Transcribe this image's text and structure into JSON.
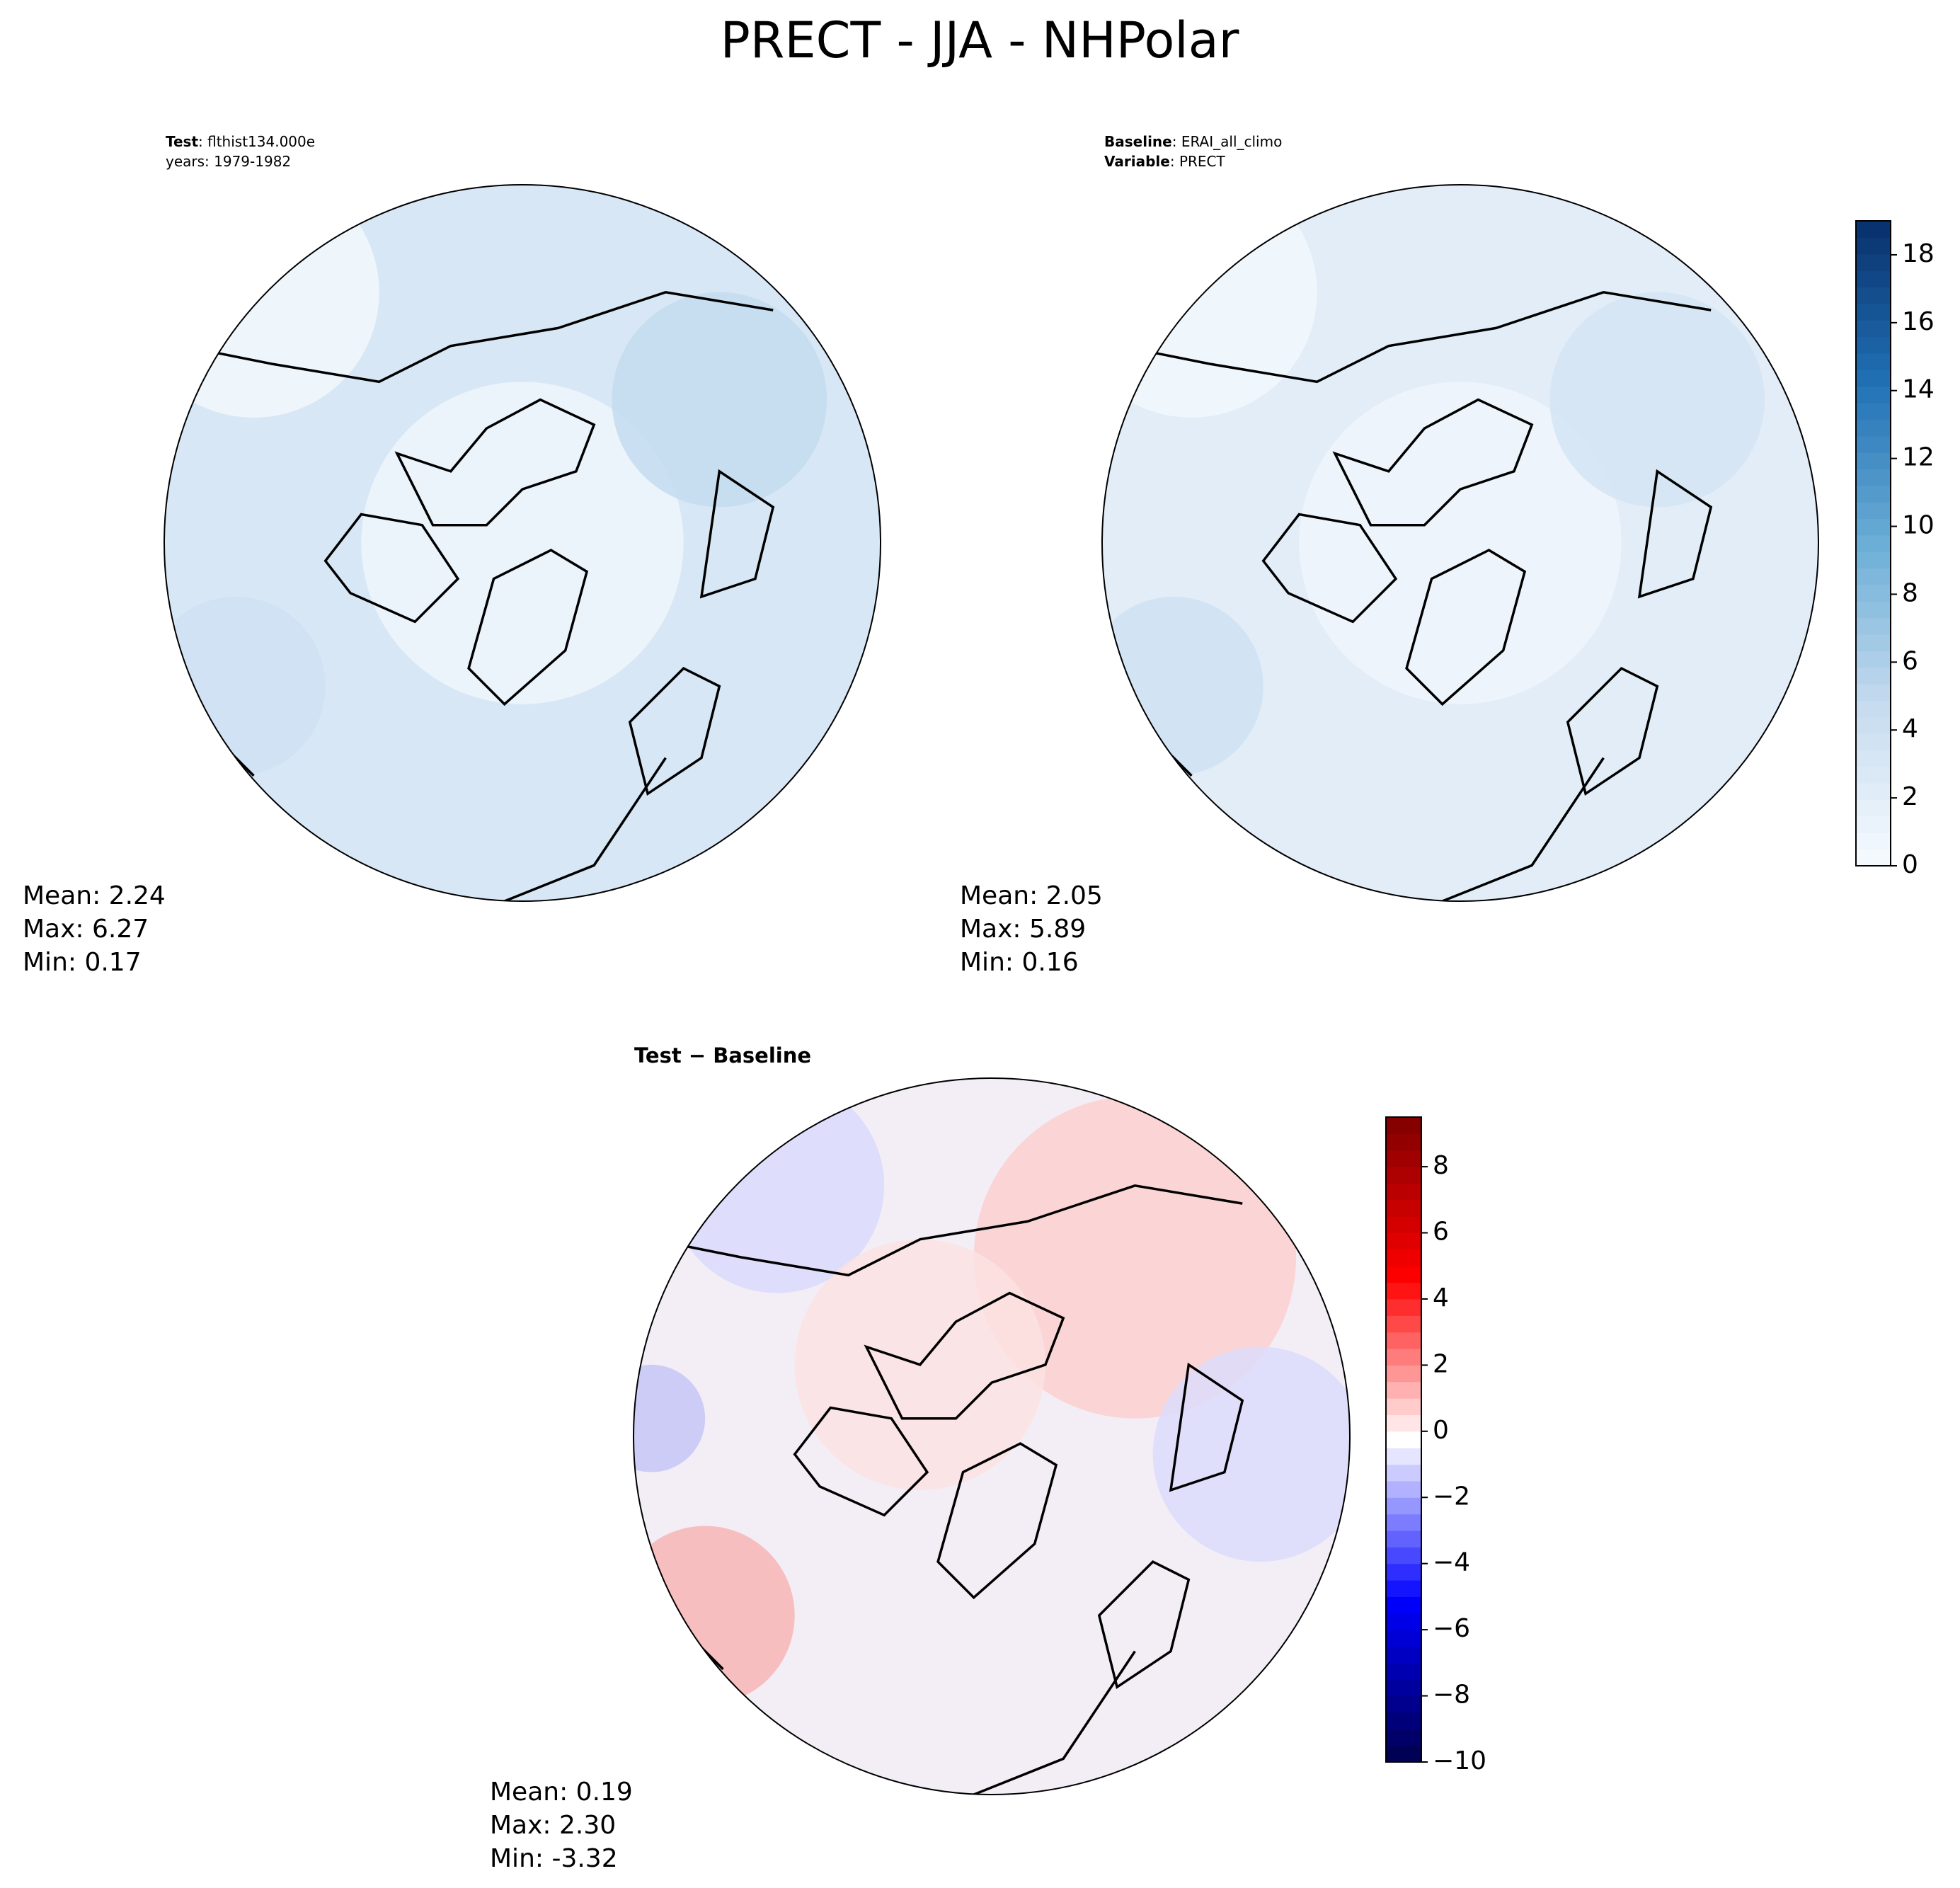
{
  "title": "PRECT - JJA - NHPolar",
  "panels": [
    {
      "header": [
        {
          "label": "Test",
          "text": ": flthist134.000e"
        },
        {
          "text": "years: 1979-1982"
        }
      ],
      "stats": [
        "Mean:  2.24",
        "Max:  6.27",
        "Min:  0.17"
      ]
    },
    {
      "header": [
        {
          "label": "Baseline",
          "text": ": ERAI_all_climo"
        },
        {
          "label": "Variable",
          "text": ": PRECT"
        }
      ],
      "stats": [
        "Mean:  2.05",
        "Max:  5.89",
        "Min:  0.16"
      ]
    },
    {
      "header": [
        {
          "label": "Test − Baseline"
        }
      ],
      "stats": [
        "Mean:  0.19",
        "Max:  2.30",
        "Min: -3.32"
      ]
    }
  ],
  "colorbars": [
    {
      "lim": [
        0,
        19
      ],
      "ticks": [
        0,
        2,
        4,
        6,
        8,
        10,
        12,
        14,
        16,
        18
      ],
      "colors": [
        "#f7fbff",
        "#c6dbef",
        "#6baed6",
        "#2171b5",
        "#08306b"
      ]
    },
    {
      "lim": [
        -10,
        9.5
      ],
      "ticks": [
        {
          "value": -10,
          "label": "−10"
        },
        {
          "value": -8,
          "label": "−8"
        },
        {
          "value": -6,
          "label": "−6"
        },
        {
          "value": -4,
          "label": "−4"
        },
        {
          "value": -2,
          "label": "−2"
        },
        0,
        2,
        4,
        6,
        8
      ],
      "colors": [
        "#00004c",
        "#0000ff",
        "#ffffff",
        "#ff0000",
        "#7f0000"
      ]
    }
  ]
}
